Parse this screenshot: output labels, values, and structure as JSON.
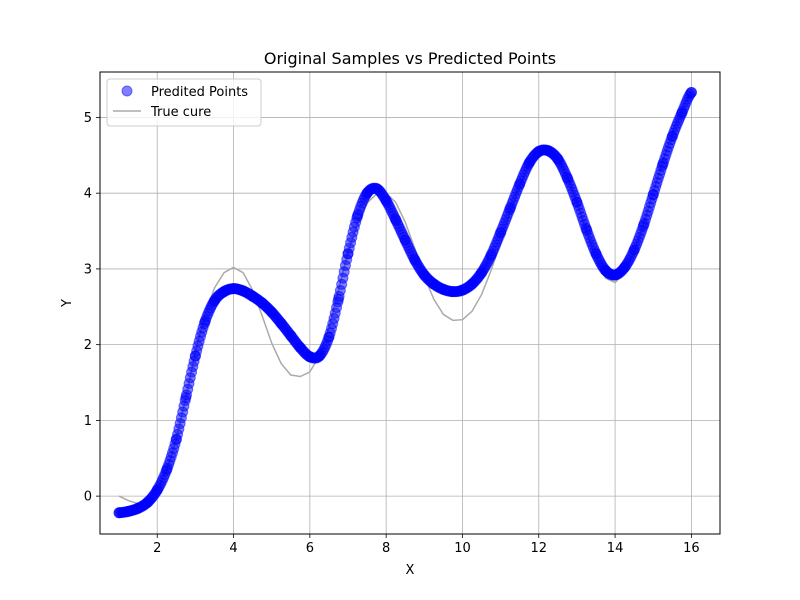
{
  "chart_data": {
    "type": "scatter",
    "title": "Original Samples vs Predicted Points",
    "xlabel": "X",
    "ylabel": "Y",
    "xlim": [
      0.5,
      16.75
    ],
    "ylim": [
      -0.5,
      5.6
    ],
    "xticks": [
      2,
      4,
      6,
      8,
      10,
      12,
      14,
      16
    ],
    "yticks": [
      0,
      1,
      2,
      3,
      4,
      5
    ],
    "grid": true,
    "legend_position": "top-left",
    "series": [
      {
        "name": "Predited Points",
        "kind": "scatter",
        "color": "#0000ff",
        "opacity": 0.5,
        "x": [
          1.0,
          1.25,
          1.5,
          1.75,
          2.0,
          2.25,
          2.5,
          2.75,
          3.0,
          3.25,
          3.5,
          3.75,
          4.0,
          4.25,
          4.5,
          4.75,
          5.0,
          5.25,
          5.5,
          5.75,
          6.0,
          6.25,
          6.5,
          6.75,
          7.0,
          7.25,
          7.5,
          7.75,
          8.0,
          8.25,
          8.5,
          8.75,
          9.0,
          9.25,
          9.5,
          9.75,
          10.0,
          10.25,
          10.5,
          10.75,
          11.0,
          11.25,
          11.5,
          11.75,
          12.0,
          12.25,
          12.5,
          12.75,
          13.0,
          13.25,
          13.5,
          13.75,
          14.0,
          14.25,
          14.5,
          14.75,
          15.0,
          15.25,
          15.5,
          15.75,
          16.0
        ],
        "y": [
          -0.22,
          -0.2,
          -0.16,
          -0.08,
          0.08,
          0.35,
          0.75,
          1.3,
          1.85,
          2.3,
          2.58,
          2.7,
          2.74,
          2.71,
          2.64,
          2.55,
          2.43,
          2.28,
          2.12,
          1.96,
          1.84,
          1.85,
          2.1,
          2.6,
          3.2,
          3.7,
          4.0,
          4.06,
          3.9,
          3.65,
          3.38,
          3.12,
          2.92,
          2.8,
          2.73,
          2.7,
          2.72,
          2.8,
          2.95,
          3.18,
          3.48,
          3.8,
          4.12,
          4.4,
          4.55,
          4.56,
          4.45,
          4.2,
          3.88,
          3.52,
          3.2,
          2.98,
          2.92,
          3.02,
          3.25,
          3.58,
          3.98,
          4.38,
          4.75,
          5.06,
          5.33
        ]
      },
      {
        "name": "True cure",
        "kind": "line",
        "color": "#aaaaaa",
        "x": [
          1.0,
          1.25,
          1.5,
          1.75,
          2.0,
          2.25,
          2.5,
          2.75,
          3.0,
          3.25,
          3.5,
          3.75,
          4.0,
          4.25,
          4.5,
          4.75,
          5.0,
          5.25,
          5.5,
          5.75,
          6.0,
          6.25,
          6.5,
          6.75,
          7.0,
          7.25,
          7.5,
          7.75,
          8.0,
          8.25,
          8.5,
          8.75,
          9.0,
          9.25,
          9.5,
          9.75,
          10.0,
          10.25,
          10.5,
          10.75,
          11.0,
          11.25,
          11.5,
          11.75,
          12.0,
          12.25,
          12.5,
          12.75,
          13.0,
          13.25,
          13.5,
          13.75,
          14.0,
          14.25,
          14.5,
          14.75,
          15.0,
          15.25,
          15.5,
          15.75,
          16.0
        ],
        "y": [
          0.0,
          -0.06,
          -0.1,
          -0.05,
          0.1,
          0.35,
          0.75,
          1.3,
          1.9,
          2.4,
          2.75,
          2.95,
          3.02,
          2.95,
          2.72,
          2.38,
          2.02,
          1.75,
          1.6,
          1.58,
          1.64,
          1.85,
          2.22,
          2.72,
          3.22,
          3.6,
          3.87,
          3.99,
          4.0,
          3.88,
          3.62,
          3.27,
          2.9,
          2.6,
          2.4,
          2.32,
          2.33,
          2.44,
          2.66,
          2.98,
          3.35,
          3.75,
          4.1,
          4.38,
          4.55,
          4.58,
          4.47,
          4.22,
          3.88,
          3.5,
          3.12,
          2.88,
          2.82,
          2.95,
          3.22,
          3.6,
          4.02,
          4.43,
          4.8,
          5.1,
          5.35
        ]
      }
    ]
  }
}
